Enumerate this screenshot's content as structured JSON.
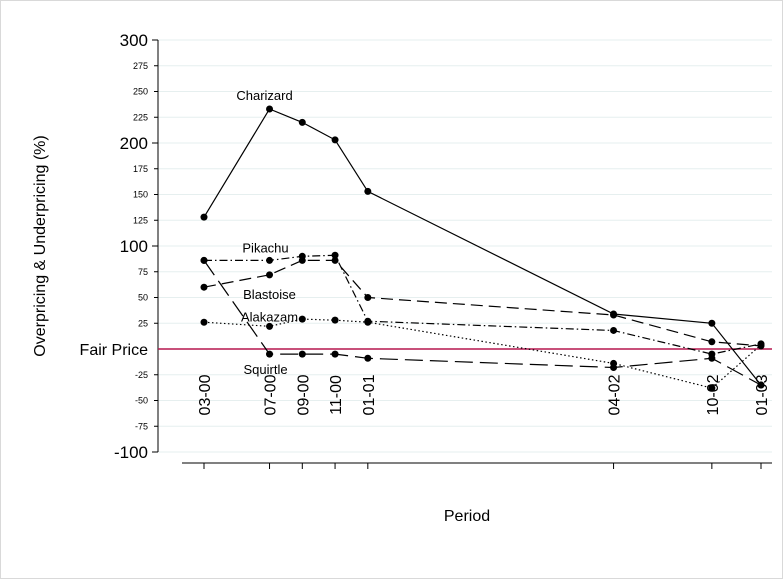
{
  "chart_data": {
    "type": "line",
    "title": "",
    "xlabel": "Period",
    "ylabel": "Overpricing  & Underpricing (%)",
    "x": [
      "03-00",
      "07-00",
      "09-00",
      "11-00",
      "01-01",
      "04-02",
      "10-02",
      "01-03"
    ],
    "x_month_index": [
      0,
      4,
      6,
      8,
      10,
      25,
      31,
      34
    ],
    "ylim": [
      -100,
      300
    ],
    "y_major_ticks": [
      {
        "value": 300,
        "label": "300"
      },
      {
        "value": 200,
        "label": "200"
      },
      {
        "value": 100,
        "label": "100"
      },
      {
        "value": -100,
        "label": "-100"
      }
    ],
    "y_minor_ticks": [
      {
        "value": 275,
        "label": "275"
      },
      {
        "value": 250,
        "label": "250"
      },
      {
        "value": 225,
        "label": "225"
      },
      {
        "value": 175,
        "label": "175"
      },
      {
        "value": 150,
        "label": "150"
      },
      {
        "value": 125,
        "label": "125"
      },
      {
        "value": 75,
        "label": "75"
      },
      {
        "value": 50,
        "label": "50"
      },
      {
        "value": 25,
        "label": "25"
      },
      {
        "value": -25,
        "label": "-25"
      },
      {
        "value": -50,
        "label": "-50"
      },
      {
        "value": -75,
        "label": "-75"
      }
    ],
    "grid": true,
    "reference_line": {
      "value": 0,
      "label": "Fair Price",
      "color": "#b5174e"
    },
    "series": [
      {
        "name": "Charizard",
        "style": "solid",
        "values": [
          128,
          233,
          220,
          203,
          153,
          34,
          25,
          -35
        ]
      },
      {
        "name": "Pikachu",
        "style": "dashdot",
        "values": [
          86,
          86,
          90,
          91,
          27,
          18,
          -5,
          5
        ]
      },
      {
        "name": "Blastoise",
        "style": "dash",
        "values": [
          60,
          72,
          86,
          86,
          50,
          33,
          7,
          3
        ]
      },
      {
        "name": "Alakazam",
        "style": "dot",
        "values": [
          26,
          22,
          29,
          28,
          26,
          -14,
          -38,
          4
        ]
      },
      {
        "name": "Squirtle",
        "style": "longdash",
        "values": [
          86,
          -5,
          -5,
          -5,
          -9,
          -18,
          -9,
          -35
        ]
      }
    ],
    "annotations": [
      {
        "text": "Charizard",
        "series": "Charizard"
      },
      {
        "text": "Pikachu",
        "series": "Pikachu"
      },
      {
        "text": "Blastoise",
        "series": "Blastoise"
      },
      {
        "text": "Alakazam",
        "series": "Alakazam"
      },
      {
        "text": "Squirtle",
        "series": "Squirtle"
      }
    ]
  }
}
